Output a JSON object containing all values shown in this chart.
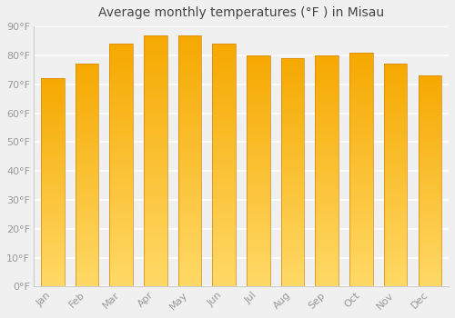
{
  "title": "Average monthly temperatures (°F ) in Misau",
  "months": [
    "Jan",
    "Feb",
    "Mar",
    "Apr",
    "May",
    "Jun",
    "Jul",
    "Aug",
    "Sep",
    "Oct",
    "Nov",
    "Dec"
  ],
  "values": [
    72,
    77,
    84,
    87,
    87,
    84,
    80,
    79,
    80,
    81,
    77,
    73
  ],
  "bar_color_top": "#F5A800",
  "bar_color_bottom": "#FFD966",
  "bar_edge_color": "#D4860A",
  "ylim": [
    0,
    90
  ],
  "yticks": [
    0,
    10,
    20,
    30,
    40,
    50,
    60,
    70,
    80,
    90
  ],
  "ytick_labels": [
    "0°F",
    "10°F",
    "20°F",
    "30°F",
    "40°F",
    "50°F",
    "60°F",
    "70°F",
    "80°F",
    "90°F"
  ],
  "background_color": "#f0f0f0",
  "grid_color": "#ffffff",
  "title_fontsize": 10,
  "tick_fontsize": 8,
  "tick_color": "#999999",
  "title_color": "#444444",
  "figsize": [
    5.0,
    3.5
  ],
  "dpi": 100
}
